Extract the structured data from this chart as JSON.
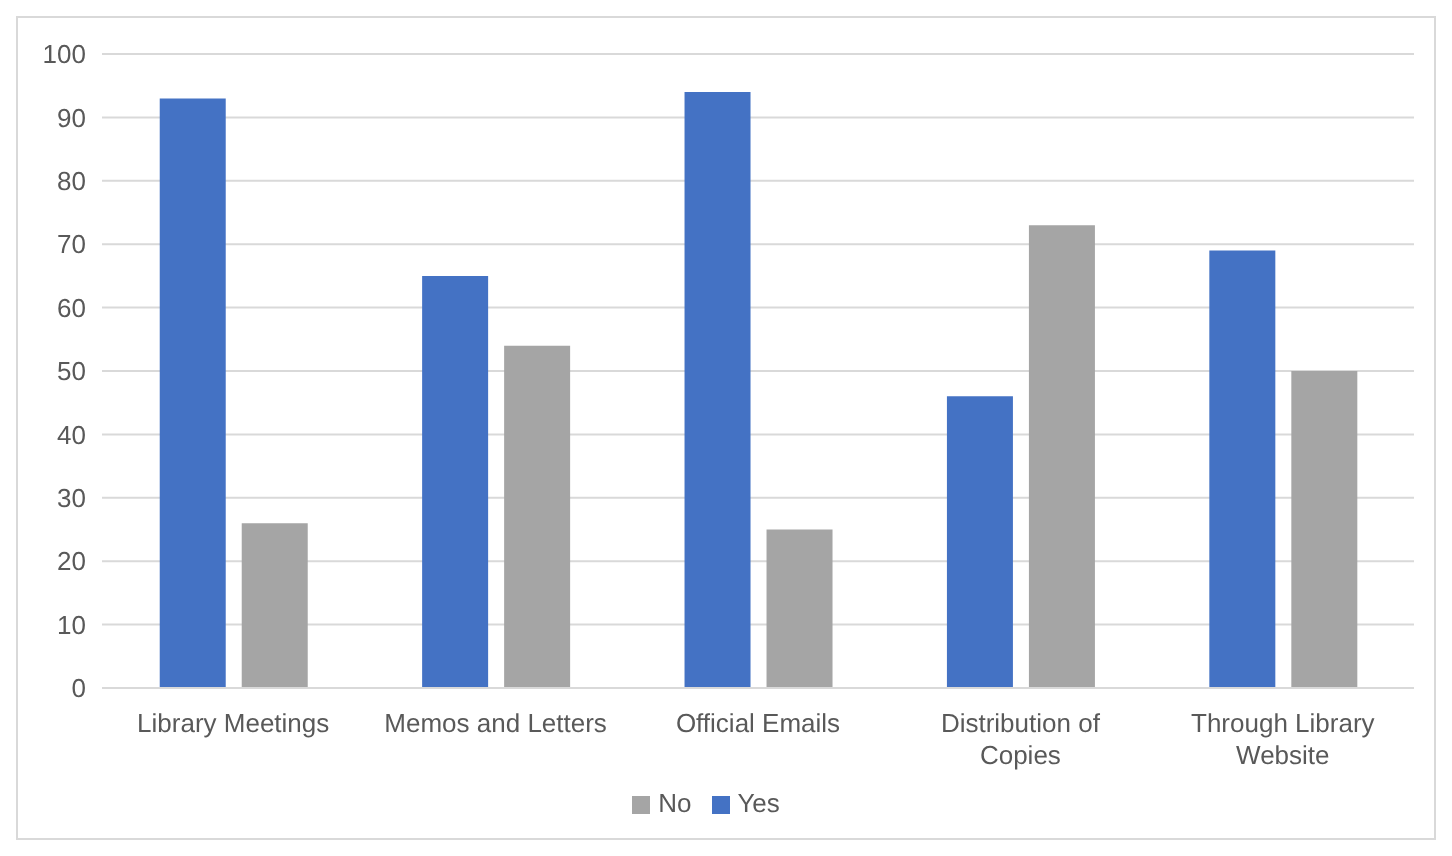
{
  "chart_data": {
    "type": "bar",
    "categories": [
      "Library Meetings",
      "Memos and Letters",
      "Official Emails",
      "Distribution of Copies",
      "Through Library Website"
    ],
    "series": [
      {
        "name": "Yes",
        "color": "#4472c4",
        "values": [
          93,
          65,
          94,
          46,
          69
        ]
      },
      {
        "name": "No",
        "color": "#a5a5a5",
        "values": [
          26,
          54,
          25,
          73,
          50
        ]
      }
    ],
    "ylim": [
      0,
      100
    ],
    "yticks": [
      0,
      10,
      20,
      30,
      40,
      50,
      60,
      70,
      80,
      90,
      100
    ],
    "grid": "y",
    "legend": "bottom"
  }
}
